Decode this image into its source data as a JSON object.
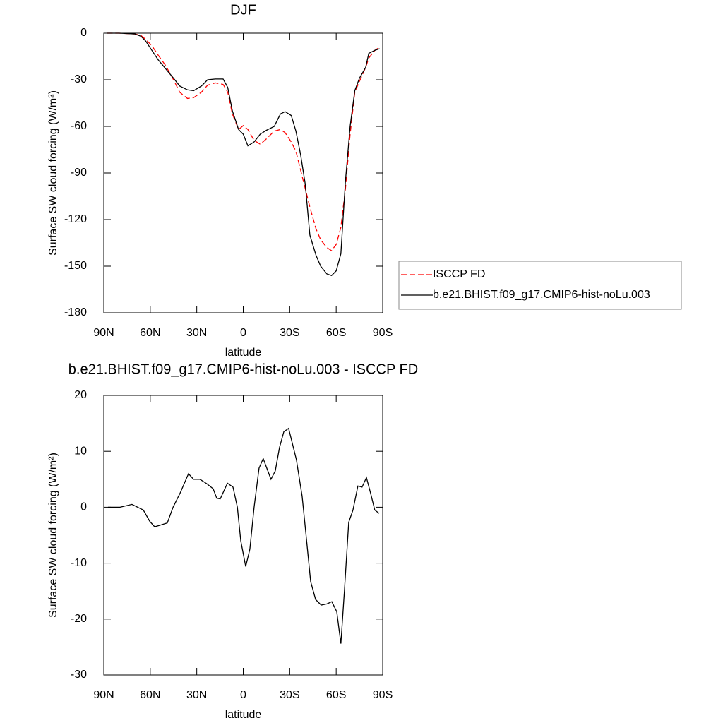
{
  "chart_data": [
    {
      "type": "line",
      "title": "DJF",
      "xlabel": "latitude",
      "ylabel": "Surface SW cloud forcing (W/m²)",
      "x": [
        88,
        80,
        70,
        66,
        63,
        59,
        55,
        50,
        45,
        41,
        36,
        32,
        27,
        23,
        18,
        13,
        10,
        7,
        3,
        0,
        -3,
        -7,
        -11,
        -15,
        -20,
        -24,
        -27,
        -31,
        -34,
        -37,
        -40,
        -43,
        -47,
        -50,
        -54,
        -57,
        -60,
        -63,
        -66,
        -69,
        -72,
        -75,
        -79,
        -81,
        -85,
        -88
      ],
      "series": [
        {
          "name": "ISCCP FD",
          "color": "#ff0000",
          "dash": true,
          "values": [
            0,
            0,
            -0.5,
            -1.5,
            -4,
            -8,
            -14,
            -21,
            -30,
            -38,
            -42,
            -41.5,
            -38,
            -33.5,
            -32,
            -33,
            -38,
            -52,
            -62,
            -59.5,
            -62,
            -69,
            -71.5,
            -68,
            -63,
            -62,
            -64,
            -70,
            -76,
            -88,
            -100,
            -112,
            -126,
            -133,
            -138,
            -140,
            -136,
            -125,
            -100,
            -65,
            -38,
            -31,
            -22,
            -16,
            -11,
            -9
          ]
        },
        {
          "name": "b.e21.BHIST.f09_g17.CMIP6-hist-noLu.003",
          "color": "#000000",
          "dash": false,
          "values": [
            0,
            0,
            -0.5,
            -2,
            -5,
            -11,
            -17,
            -23,
            -29,
            -34,
            -36.5,
            -37,
            -34,
            -30,
            -29.5,
            -29.5,
            -35,
            -50,
            -62,
            -65,
            -72.5,
            -70,
            -65,
            -62.5,
            -60,
            -52,
            -50.5,
            -53,
            -63,
            -78,
            -97,
            -130,
            -143,
            -150,
            -155,
            -156,
            -153,
            -142,
            -95,
            -60,
            -37,
            -29,
            -22,
            -13,
            -11,
            -10
          ]
        }
      ],
      "xlim": [
        90,
        -90
      ],
      "xticks": [
        {
          "value": 90,
          "label": "90N"
        },
        {
          "value": 60,
          "label": "60N"
        },
        {
          "value": 30,
          "label": "30N"
        },
        0,
        {
          "value": -30,
          "label": "30S"
        },
        {
          "value": -60,
          "label": "60S"
        },
        {
          "value": -90,
          "label": "90S"
        }
      ],
      "ylim": [
        -180,
        0
      ],
      "yticks": [
        -180,
        -150,
        -120,
        -90,
        -60,
        -30,
        0
      ],
      "legend": "right"
    },
    {
      "type": "line",
      "title": "b.e21.BHIST.f09_g17.CMIP6-hist-noLu.003 - ISCCP FD",
      "xlabel": "latitude",
      "ylabel": "Surface SW cloud forcing (W/m²)",
      "x": [
        87.3,
        79.5,
        71.8,
        68.1,
        64.5,
        60.4,
        57.2,
        53.5,
        49,
        45.3,
        40.8,
        35.3,
        32.1,
        28,
        23.5,
        19.4,
        17.1,
        14.8,
        10.2,
        6.6,
        3.8,
        1.6,
        -1.6,
        -4.3,
        -7,
        -10.2,
        -12.9,
        -17.9,
        -20.7,
        -23.4,
        -26.2,
        -29.3,
        -34.3,
        -38,
        -40.2,
        -43.5,
        -46.7,
        -50.3,
        -54,
        -57.2,
        -60.4,
        -63,
        -65.3,
        -68.1,
        -70.8,
        -74,
        -76.7,
        -79.5,
        -82.2,
        -84.9,
        -87.7
      ],
      "series": [
        {
          "color": "#000000",
          "dash": false,
          "values": [
            0,
            0,
            0.5,
            0,
            -0.5,
            -2.5,
            -3.5,
            -3.2,
            -2.8,
            0,
            2.5,
            6,
            5,
            5,
            4.2,
            3.3,
            1.6,
            1.5,
            4.3,
            3.6,
            0,
            -6,
            -10.6,
            -7.5,
            0,
            7,
            8.7,
            5,
            6.5,
            10.7,
            13.5,
            14.1,
            8.5,
            2,
            -4,
            -13.3,
            -16.5,
            -17.5,
            -17.3,
            -16.9,
            -18.7,
            -24.4,
            -15,
            -2.7,
            -0.5,
            3.8,
            3.6,
            5.3,
            2.5,
            -0.5,
            -1.1
          ]
        }
      ],
      "xlim": [
        90,
        -90
      ],
      "xticks": [
        {
          "value": 90,
          "label": "90N"
        },
        {
          "value": 60,
          "label": "60N"
        },
        {
          "value": 30,
          "label": "30N"
        },
        0,
        {
          "value": -30,
          "label": "30S"
        },
        {
          "value": -60,
          "label": "60S"
        },
        {
          "value": -90,
          "label": "90S"
        }
      ],
      "ylim": [
        -30,
        20
      ],
      "yticks": [
        -30,
        -20,
        -10,
        0,
        10,
        20
      ]
    }
  ]
}
